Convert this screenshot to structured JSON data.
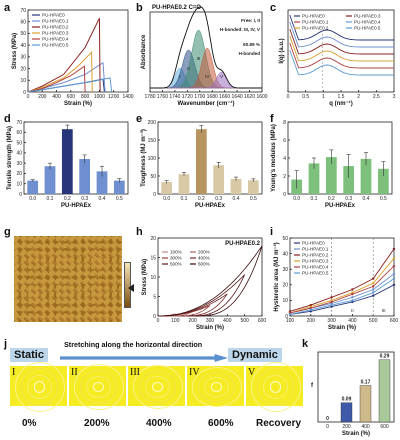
{
  "panel_labels": {
    "a": "a",
    "b": "b",
    "c": "c",
    "d": "d",
    "e": "e",
    "f": "f",
    "g": "g",
    "h": "h",
    "i": "i",
    "j": "j",
    "k": "k"
  },
  "colors": {
    "s0": "#27357a",
    "s01": "#6f8fd1",
    "s02": "#8a2020",
    "s03": "#d9a030",
    "s04": "#b04040",
    "s05": "#5c9bd3",
    "bar_bg": "#f2f2f2"
  },
  "chart_data": [
    {
      "id": "a",
      "type": "line",
      "xlabel": "Strain (%)",
      "ylabel": "Stress (MPa)",
      "xlim": [
        0,
        1400
      ],
      "ylim": [
        0,
        70
      ],
      "xticks": [
        0,
        200,
        400,
        600,
        800,
        1000,
        1200,
        1400
      ],
      "yticks": [
        0,
        10,
        20,
        30,
        40,
        50,
        60,
        70
      ],
      "series": [
        {
          "name": "PU-HPAE0",
          "color": "#27357a",
          "points": [
            [
              0,
              0
            ],
            [
              200,
              2
            ],
            [
              500,
              5
            ],
            [
              800,
              8
            ],
            [
              1050,
              11
            ],
            [
              1070,
              0
            ]
          ]
        },
        {
          "name": "PU-HPAE0.1",
          "color": "#6f8fd1",
          "points": [
            [
              0,
              0
            ],
            [
              200,
              3
            ],
            [
              500,
              8
            ],
            [
              800,
              15
            ],
            [
              1050,
              25
            ],
            [
              1080,
              0
            ]
          ]
        },
        {
          "name": "PU-HPAE0.2",
          "color": "#8a2020",
          "points": [
            [
              0,
              0
            ],
            [
              200,
              5
            ],
            [
              500,
              15
            ],
            [
              800,
              38
            ],
            [
              1000,
              63
            ],
            [
              1010,
              0
            ]
          ]
        },
        {
          "name": "PU-HPAE0.3",
          "color": "#d9a030",
          "points": [
            [
              0,
              0
            ],
            [
              200,
              4
            ],
            [
              500,
              12
            ],
            [
              700,
              22
            ],
            [
              890,
              34
            ],
            [
              900,
              0
            ]
          ]
        },
        {
          "name": "PU-HPAE0.4",
          "color": "#b04040",
          "points": [
            [
              0,
              0
            ],
            [
              200,
              3
            ],
            [
              400,
              8
            ],
            [
              600,
              14
            ],
            [
              790,
              22
            ],
            [
              800,
              0
            ]
          ]
        },
        {
          "name": "PU-HPAE0.5",
          "color": "#5c9bd3",
          "points": [
            [
              0,
              0
            ],
            [
              300,
              3
            ],
            [
              600,
              6
            ],
            [
              900,
              9
            ],
            [
              1150,
              12
            ],
            [
              1170,
              0
            ]
          ]
        }
      ]
    },
    {
      "id": "b",
      "type": "line",
      "title": "PU-HPAE0.2   C=O",
      "xlabel": "Wavenumber (cm⁻¹)",
      "ylabel": "Absorbance",
      "xlim": [
        1780,
        1600
      ],
      "xticks": [
        1780,
        1760,
        1740,
        1720,
        1700,
        1680,
        1660,
        1640,
        1620,
        1600
      ],
      "annotations": [
        "Free: I, II",
        "H-bonded: III, IV, V",
        "60.89 %",
        "H-bonded"
      ],
      "peak_labels": [
        "I",
        "II",
        "III",
        "IV",
        "V"
      ]
    },
    {
      "id": "c",
      "type": "line",
      "xlabel": "q (nm⁻¹)",
      "ylabel": "I(q) (a.u.)",
      "xlim": [
        0,
        3.0
      ],
      "xticks": [
        0,
        0.5,
        1.0,
        1.5,
        2.0,
        2.5,
        3.0
      ],
      "series_names": [
        "PU-HPAE0",
        "PU-HPAE0.3",
        "PU-HPAE0.1",
        "PU-HPAE0.4",
        "PU-HPAE0.2",
        "PU-HPAE0.5"
      ]
    },
    {
      "id": "d",
      "type": "bar",
      "xlabel": "PU-HPAEx",
      "ylabel": "Tensile strength (MPa)",
      "categories": [
        "0.0",
        "0.1",
        "0.2",
        "0.3",
        "0.4",
        "0.5"
      ],
      "values": [
        13,
        27,
        63,
        34,
        22,
        13
      ],
      "errors": [
        1,
        3,
        4,
        4,
        5,
        2
      ],
      "ylim": [
        0,
        70
      ],
      "yticks": [
        0,
        10,
        20,
        30,
        40,
        50,
        60,
        70
      ]
    },
    {
      "id": "e",
      "type": "bar",
      "xlabel": "PU-HPAEx",
      "ylabel": "Toughness (MJ m⁻³)",
      "categories": [
        "0.0",
        "0.1",
        "0.2",
        "0.3",
        "0.4",
        "0.5"
      ],
      "values": [
        33,
        55,
        180,
        80,
        42,
        38
      ],
      "errors": [
        4,
        5,
        10,
        8,
        5,
        4
      ],
      "ylim": [
        0,
        200
      ],
      "yticks": [
        0,
        50,
        100,
        150,
        200
      ]
    },
    {
      "id": "f",
      "type": "bar",
      "xlabel": "PU-HPAEx",
      "ylabel": "Young's modulus (MPa)",
      "categories": [
        "0.0",
        "0.1",
        "0.2",
        "0.3",
        "0.4",
        "0.5"
      ],
      "values": [
        1.6,
        3.4,
        4.1,
        3.1,
        3.9,
        2.8
      ],
      "errors": [
        1.0,
        0.6,
        0.8,
        1.3,
        0.7,
        0.8
      ],
      "ylim": [
        0,
        8
      ],
      "yticks": [
        0,
        2,
        4,
        6,
        8
      ]
    },
    {
      "id": "h",
      "type": "line",
      "title": "PU-HPAE0.2",
      "xlabel": "Strain (%)",
      "ylabel": "Stress (MPa)",
      "xlim": [
        0,
        600
      ],
      "ylim": [
        0,
        20
      ],
      "xticks": [
        0,
        100,
        200,
        300,
        400,
        500,
        600
      ],
      "yticks": [
        0,
        5,
        10,
        15,
        20
      ],
      "legend": [
        "100%",
        "200%",
        "300%",
        "400%",
        "500%",
        "600%"
      ]
    },
    {
      "id": "i",
      "type": "line",
      "xlabel": "Strain (%)",
      "ylabel": "Hysteretic area (MJ m⁻³)",
      "xlim": [
        100,
        600
      ],
      "ylim": [
        0,
        50
      ],
      "xticks": [
        100,
        200,
        300,
        400,
        500,
        600
      ],
      "yticks": [
        0,
        10,
        20,
        30,
        40,
        50
      ],
      "region_labels": [
        "I",
        "II",
        "III"
      ],
      "categories": [
        100,
        200,
        300,
        400,
        500,
        600
      ],
      "series": [
        {
          "name": "PU-HPAE0",
          "values": [
            1,
            3,
            6,
            9,
            13,
            20
          ]
        },
        {
          "name": "PU-HPAE0.1",
          "values": [
            2,
            5,
            8,
            12,
            17,
            27
          ]
        },
        {
          "name": "PU-HPAE0.2",
          "values": [
            3,
            7,
            12,
            17,
            24,
            43
          ]
        },
        {
          "name": "PU-HPAE0.3",
          "values": [
            2,
            6,
            10,
            15,
            21,
            37
          ]
        },
        {
          "name": "PU-HPAE0.4",
          "values": [
            2,
            5,
            9,
            14,
            19,
            32
          ]
        },
        {
          "name": "PU-HPAE0.5",
          "values": [
            1,
            4,
            7,
            10,
            15,
            24
          ]
        }
      ]
    },
    {
      "id": "k",
      "type": "bar",
      "xlabel": "Strain (%)",
      "ylabel": "f",
      "categories": [
        "0",
        "200",
        "400",
        "600"
      ],
      "values": [
        0,
        0.09,
        0.17,
        0.29
      ],
      "value_labels": [
        "0",
        "0.09",
        "0.17",
        "0.29"
      ],
      "ylim": [
        0,
        0.3
      ]
    }
  ],
  "j": {
    "static_label": "Static",
    "arrow_text": "Stretching along the horizontal direction",
    "dynamic_label": "Dynamic",
    "stages": [
      "I",
      "II",
      "III",
      "IV",
      "V"
    ],
    "strains": [
      "0%",
      "200%",
      "400%",
      "600%",
      "Recovery"
    ]
  }
}
